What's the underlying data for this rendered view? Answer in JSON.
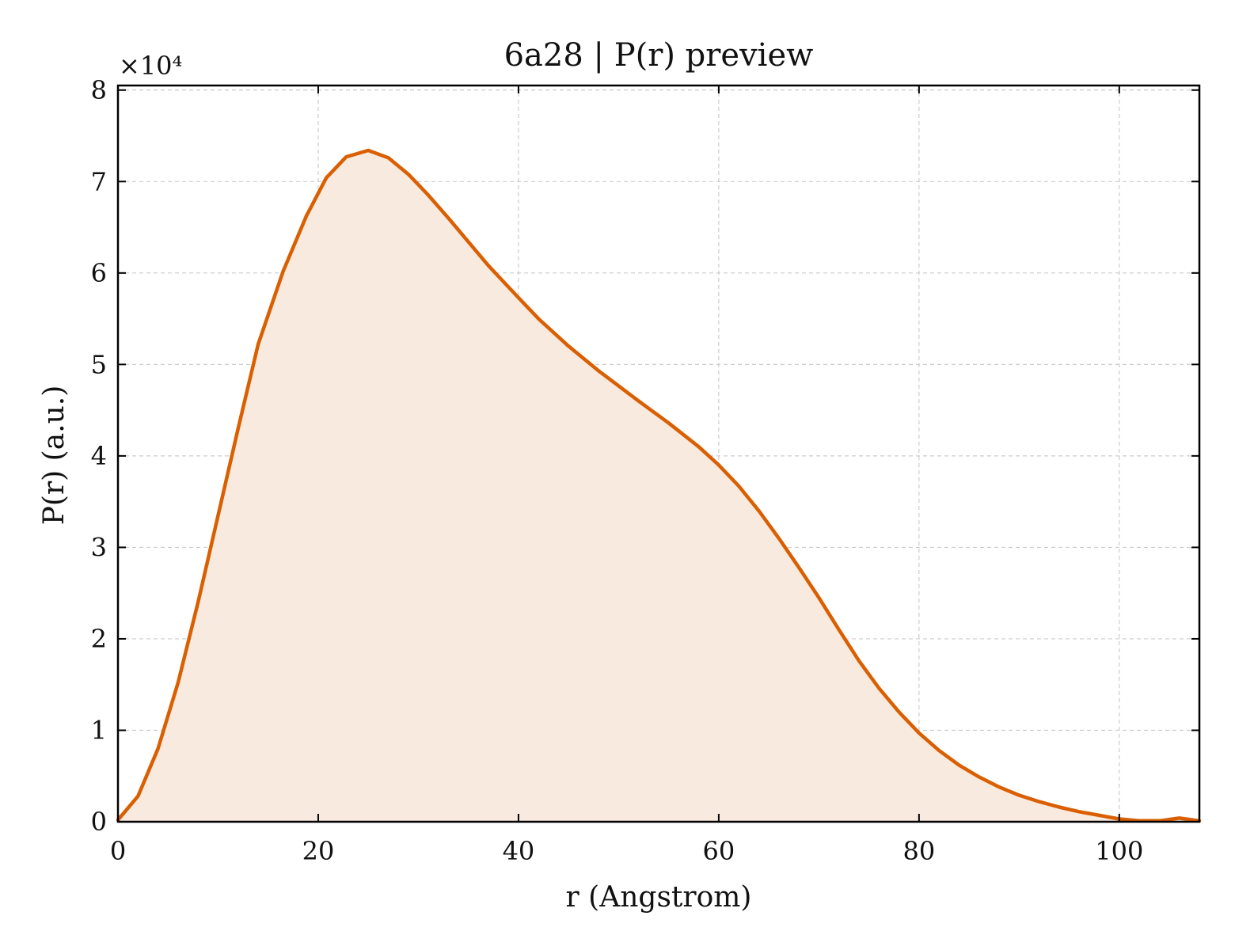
{
  "chart_data": {
    "type": "area",
    "title": "6a28 | P(r) preview",
    "xlabel": "r (Angstrom)",
    "ylabel": "P(r) (a.u.)",
    "y_multiplier": "×10⁴",
    "xlim": [
      0,
      108
    ],
    "ylim": [
      0,
      8.05
    ],
    "grid": true,
    "x_ticks": [
      0,
      20,
      40,
      60,
      80,
      100
    ],
    "x_tick_labels": [
      "0",
      "20",
      "40",
      "60",
      "80",
      "100"
    ],
    "y_ticks": [
      0,
      1,
      2,
      3,
      4,
      5,
      6,
      7,
      8
    ],
    "y_tick_labels": [
      "0",
      "1",
      "2",
      "3",
      "4",
      "5",
      "6",
      "7",
      "8"
    ],
    "colors": {
      "line": "#d95f02",
      "fill": "#f9eadf"
    },
    "series": [
      {
        "x": [
          0,
          2,
          4,
          6,
          8,
          10,
          12,
          14,
          16.5,
          18.8,
          20.8,
          22.8,
          25,
          27,
          29,
          31,
          33,
          35,
          37,
          40,
          42,
          45,
          48,
          52,
          55,
          58,
          60,
          62,
          64,
          66,
          68,
          70,
          72,
          74,
          76,
          78,
          80,
          82,
          84,
          86,
          88,
          90,
          92,
          94,
          96,
          98,
          100,
          102,
          104,
          106,
          108
        ],
        "values": [
          0.02,
          0.28,
          0.8,
          1.52,
          2.4,
          3.35,
          4.3,
          5.22,
          6.02,
          6.62,
          7.04,
          7.27,
          7.34,
          7.26,
          7.08,
          6.85,
          6.6,
          6.34,
          6.08,
          5.73,
          5.5,
          5.2,
          4.93,
          4.6,
          4.36,
          4.1,
          3.9,
          3.67,
          3.4,
          3.1,
          2.78,
          2.45,
          2.1,
          1.76,
          1.46,
          1.2,
          0.97,
          0.78,
          0.62,
          0.49,
          0.38,
          0.29,
          0.22,
          0.16,
          0.11,
          0.07,
          0.03,
          0.01,
          0.01,
          0.04,
          0.01
        ]
      }
    ]
  }
}
